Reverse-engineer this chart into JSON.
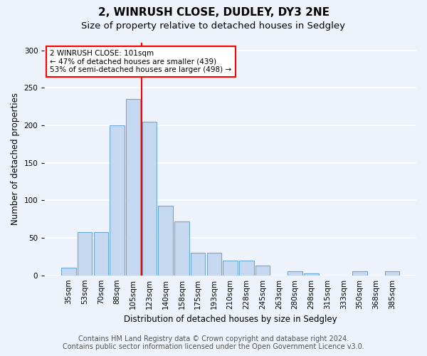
{
  "title_line1": "2, WINRUSH CLOSE, DUDLEY, DY3 2NE",
  "title_line2": "Size of property relative to detached houses in Sedgley",
  "xlabel": "Distribution of detached houses by size in Sedgley",
  "ylabel": "Number of detached properties",
  "categories": [
    "35sqm",
    "53sqm",
    "70sqm",
    "88sqm",
    "105sqm",
    "123sqm",
    "140sqm",
    "158sqm",
    "175sqm",
    "193sqm",
    "210sqm",
    "228sqm",
    "245sqm",
    "263sqm",
    "280sqm",
    "298sqm",
    "315sqm",
    "333sqm",
    "350sqm",
    "368sqm",
    "385sqm"
  ],
  "values": [
    10,
    58,
    58,
    200,
    235,
    205,
    93,
    72,
    30,
    30,
    20,
    20,
    13,
    0,
    5,
    3,
    0,
    0,
    5,
    0,
    5
  ],
  "bar_color": "#c5d8f0",
  "bar_edge_color": "#6aaad4",
  "vline_x": 4.5,
  "vline_color": "red",
  "annotation_text": "2 WINRUSH CLOSE: 101sqm\n← 47% of detached houses are smaller (439)\n53% of semi-detached houses are larger (498) →",
  "annotation_box_color": "white",
  "annotation_box_edge": "red",
  "ylim": [
    0,
    310
  ],
  "yticks": [
    0,
    50,
    100,
    150,
    200,
    250,
    300
  ],
  "footer_line1": "Contains HM Land Registry data © Crown copyright and database right 2024.",
  "footer_line2": "Contains public sector information licensed under the Open Government Licence v3.0.",
  "bg_color": "#eef2fb",
  "grid_color": "white",
  "title_fontsize": 11,
  "subtitle_fontsize": 9.5,
  "label_fontsize": 8.5,
  "tick_fontsize": 7.5,
  "footer_fontsize": 7,
  "ann_fontsize": 7.5
}
